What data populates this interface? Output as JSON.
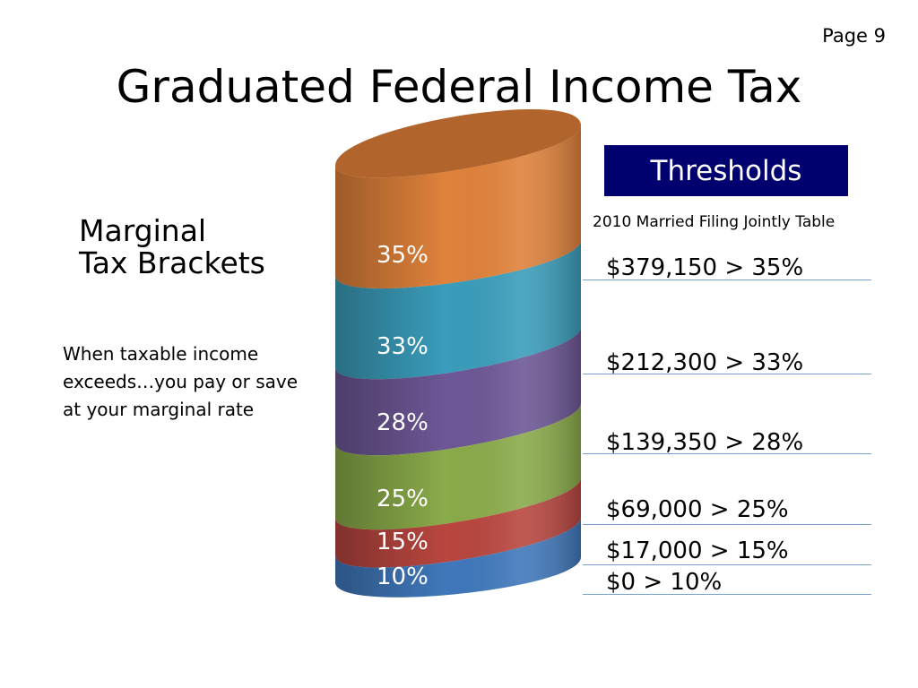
{
  "page": {
    "number_label": "Page 9"
  },
  "title": "Graduated Federal Income Tax",
  "side": {
    "heading_line1": "Marginal",
    "heading_line2": "Tax Brackets",
    "note": "When taxable income exceeds…you pay or save at your marginal rate"
  },
  "thresholds": {
    "header": "Thresholds",
    "caption": "2010 Married Filing Jointly Table",
    "rows": [
      {
        "label": "$379,150 > 35%"
      },
      {
        "label": "$212,300 > 33%"
      },
      {
        "label": "$139,350 > 28%"
      },
      {
        "label": "$69,000 > 25%"
      },
      {
        "label": "$17,000 > 15%"
      },
      {
        "label": "$0 > 10%"
      }
    ]
  },
  "cylinder": {
    "bands": [
      {
        "label": "35%",
        "color": "#e0823b"
      },
      {
        "label": "33%",
        "color": "#3a9dbb"
      },
      {
        "label": "28%",
        "color": "#6d5796"
      },
      {
        "label": "25%",
        "color": "#8aab4a"
      },
      {
        "label": "15%",
        "color": "#b9463f"
      },
      {
        "label": "10%",
        "color": "#4078bb"
      }
    ]
  }
}
